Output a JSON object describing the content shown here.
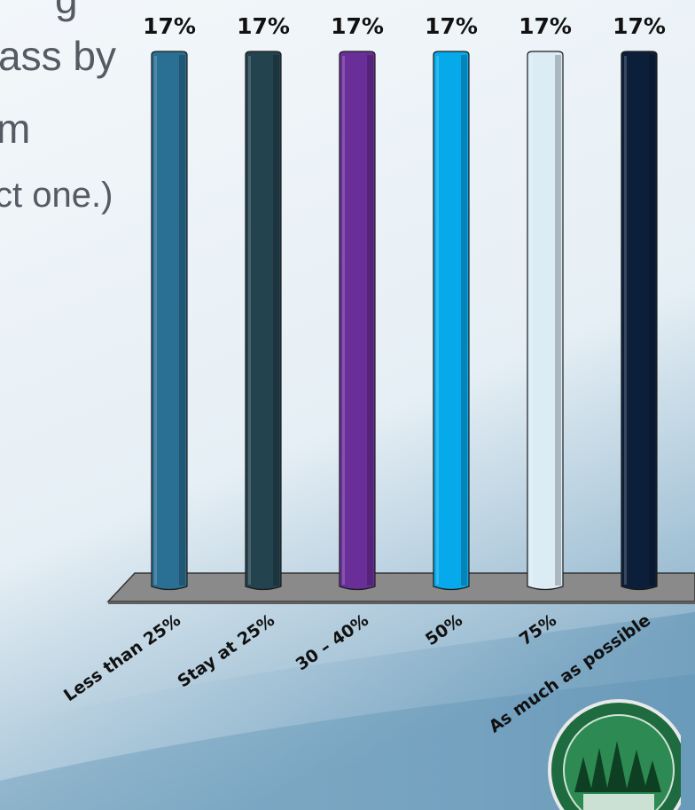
{
  "question": {
    "line_1": "g",
    "line_2": "ass by",
    "line_3": "m",
    "line_4": "ct one.)"
  },
  "colors": {
    "background_top": "#eef4f8",
    "background_bottom": "#7fa9c4",
    "floor": "#8a8a8a",
    "accent": "#1f7295"
  },
  "chart_data": {
    "type": "bar",
    "title": "",
    "xlabel": "",
    "ylabel": "",
    "ylim": [
      0,
      17
    ],
    "categories": [
      "Less than 25%",
      "Stay at 25%",
      "30 – 40%",
      "50%",
      "75%",
      "As much as possible"
    ],
    "values": [
      17,
      17,
      17,
      17,
      17,
      17
    ],
    "value_labels": [
      "17%",
      "17%",
      "17%",
      "17%",
      "17%",
      "17%"
    ],
    "bar_colors": [
      "#2a6f94",
      "#23434f",
      "#6a2e99",
      "#06aaea",
      "#dbecf5",
      "#0c1f3a"
    ],
    "legend": "none",
    "grid": false
  },
  "logo": {
    "icon": "forest-seal-icon"
  }
}
